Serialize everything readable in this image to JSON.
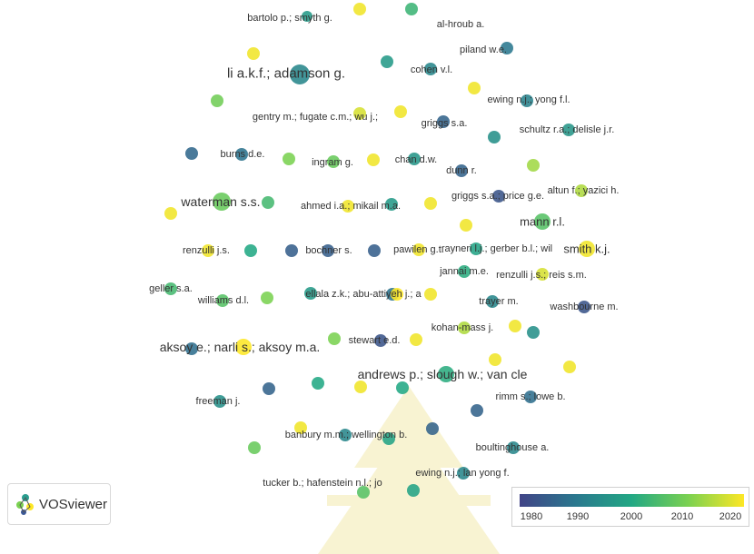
{
  "app": {
    "brand_name": "VOSviewer"
  },
  "legend": {
    "ticks": [
      "1980",
      "1990",
      "2000",
      "2010",
      "2020"
    ],
    "colors": [
      "#414487",
      "#2a788e",
      "#22a884",
      "#7ad151",
      "#fde725"
    ]
  },
  "nodes": [
    {
      "label": "bartolo p.; smyth g.",
      "year": 1997
    },
    {
      "label": "al-hroub a.",
      "year": 2003
    },
    {
      "label": "piland w.e.",
      "year": 1990
    },
    {
      "label": "li a.k.f.; adamson g.",
      "year": 1993
    },
    {
      "label": "cohen v.l.",
      "year": 1993
    },
    {
      "label": "ewing n.j.; yong f.l.",
      "year": 1992
    },
    {
      "label": "gentry m.; fugate c.m.; wu j.;",
      "year": 2017
    },
    {
      "label": "griggs s.a.",
      "year": 1986
    },
    {
      "label": "schultz r.a.; delisle j.r.",
      "year": 1996
    },
    {
      "label": "burns d.e.",
      "year": 1989
    },
    {
      "label": "ingram g.",
      "year": 2008
    },
    {
      "label": "chan d.w.",
      "year": 1996
    },
    {
      "label": "dunn r.",
      "year": 1986
    },
    {
      "label": "altun f.; yazici h.",
      "year": 2014
    },
    {
      "label": "waterman s.s.",
      "year": 2008
    },
    {
      "label": "ahmed i.a.; mikail m.a.",
      "year": 2019
    },
    {
      "label": "griggs s.a.; price g.e.",
      "year": 1983
    },
    {
      "label": "mann r.l.",
      "year": 2006
    },
    {
      "label": "renzulli j.s.",
      "year": 2019
    },
    {
      "label": "bochner s.",
      "year": 1985
    },
    {
      "label": "pawilen g.t.",
      "year": 2019
    },
    {
      "label": "rayneri l.j.; gerber b.l.; wil",
      "year": 1999
    },
    {
      "label": "smith k.j.",
      "year": 2019
    },
    {
      "label": "jannai m.e.",
      "year": 2001
    },
    {
      "label": "renzulli j.s.; reis s.m.",
      "year": 2017
    },
    {
      "label": "geller s.a.",
      "year": 2004
    },
    {
      "label": "williams d.l.",
      "year": 2006
    },
    {
      "label": "ellala z.k.; abu-attiyeh j.; a",
      "year": 2021
    },
    {
      "label": "trayer m.",
      "year": 1993
    },
    {
      "label": "washbourne m.",
      "year": 1983
    },
    {
      "label": "kohan-mass j.",
      "year": 2014
    },
    {
      "label": "aksoy e.; narli s.; aksoy m.a.",
      "year": 2020
    },
    {
      "label": "stewart e.d.",
      "year": 1983
    },
    {
      "label": "andrews p.; slough w.; van cle",
      "year": 2001
    },
    {
      "label": "rimm s.; lowe b.",
      "year": 1988
    },
    {
      "label": "freeman j.",
      "year": 1995
    },
    {
      "label": "banbury m.m.; wellington b.",
      "year": 1993
    },
    {
      "label": "boultinghouse a.",
      "year": 1993
    },
    {
      "label": "ewing n.j.; lan yong f.",
      "year": 1993
    },
    {
      "label": "tucker b.; hafenstein n.l.; jo",
      "year": 2006
    }
  ]
}
